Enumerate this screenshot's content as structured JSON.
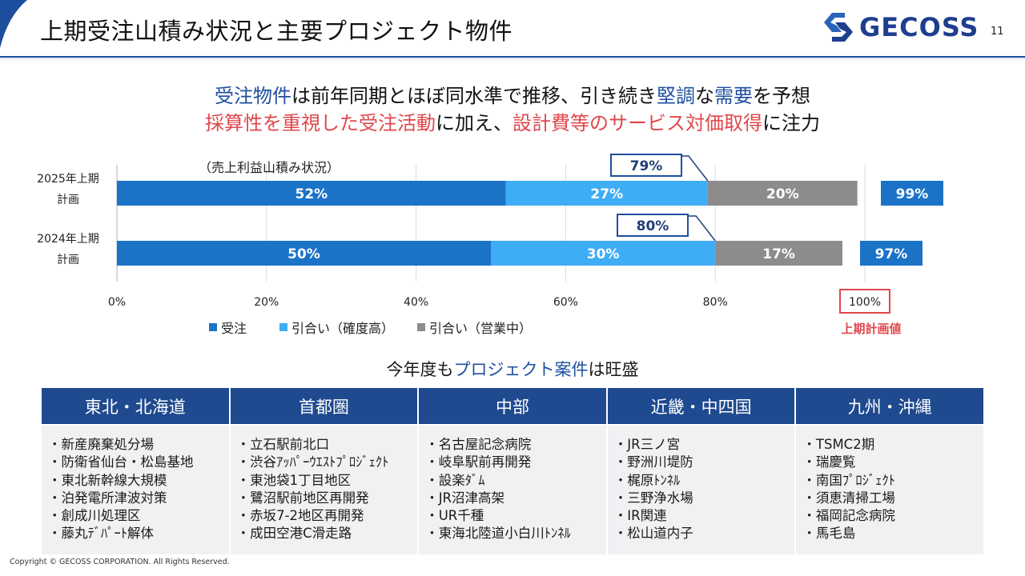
{
  "header": {
    "title": "上期受注山積み状況と主要プロジェクト物件",
    "logo_text": "GECOSS",
    "page_number": "11"
  },
  "headline": {
    "line1": [
      {
        "text": "受注物件",
        "style": "blue"
      },
      {
        "text": "は前年同期とほぼ同水準で推移、引き続き",
        "style": "black"
      },
      {
        "text": "堅調",
        "style": "blue"
      },
      {
        "text": "な",
        "style": "black"
      },
      {
        "text": "需要",
        "style": "blue"
      },
      {
        "text": "を予想",
        "style": "black"
      }
    ],
    "line2": [
      {
        "text": "採算性を重視した受注活動",
        "style": "red"
      },
      {
        "text": "に加え、",
        "style": "black"
      },
      {
        "text": "設計費等のサービス対価取得",
        "style": "red"
      },
      {
        "text": "に注力",
        "style": "black"
      }
    ]
  },
  "chart_data": {
    "type": "bar",
    "orientation": "horizontal",
    "stacked": true,
    "subtitle": "（売上利益山積み状況）",
    "categories": [
      "2025年上期\n計画",
      "2024年上期\n計画"
    ],
    "series": [
      {
        "name": "受注",
        "values": [
          52,
          50
        ],
        "labels": [
          "52%",
          "50%"
        ],
        "color": "#1b73c8"
      },
      {
        "name": "引合い（確度高）",
        "values": [
          27,
          30
        ],
        "labels": [
          "27%",
          "30%"
        ],
        "color": "#3fadf5"
      },
      {
        "name": "引合い（営業中）",
        "values": [
          20,
          17
        ],
        "labels": [
          "20%",
          "17%"
        ],
        "color": "#8c8c8c"
      }
    ],
    "callouts": [
      "79%",
      "80%"
    ],
    "totals": [
      "99%",
      "97%"
    ],
    "xlim": [
      0,
      100
    ],
    "xticks": [
      "0%",
      "20%",
      "40%",
      "60%",
      "80%",
      "100%"
    ],
    "grid": true,
    "legend_position": "bottom",
    "target_label": "上期計画値",
    "colors": {
      "order": "#1b73c8",
      "high": "#3fadf5",
      "sales": "#8c8c8c",
      "callout_border": "#1f4f9f",
      "total_box": "#1b73c8",
      "target": "#e0474c"
    }
  },
  "projects": {
    "title_parts": [
      {
        "text": "今年度も",
        "style": "black"
      },
      {
        "text": "プロジェクト案件",
        "style": "blue"
      },
      {
        "text": "は旺盛",
        "style": "black"
      }
    ],
    "regions": [
      {
        "name": "東北・北海道",
        "items": [
          "・新産廃棄処分場",
          "・防衛省仙台・松島基地",
          "・東北新幹線大規模",
          "・泊発電所津波対策",
          "・創成川処理区",
          "・藤丸ﾃﾞﾊﾟｰﾄ解体"
        ]
      },
      {
        "name": "首都圏",
        "items": [
          "・立石駅前北口",
          "・渋谷ｱｯﾊﾟｰｳｴｽﾄﾌﾟﾛｼﾞｪｸﾄ",
          "・東池袋1丁目地区",
          "・鷺沼駅前地区再開発",
          "・赤坂7-2地区再開発",
          "・成田空港C滑走路"
        ]
      },
      {
        "name": "中部",
        "items": [
          "・名古屋記念病院",
          "・岐阜駅前再開発",
          "・設楽ﾀﾞﾑ",
          "・JR沼津高架",
          "・UR千種",
          "・東海北陸道小白川ﾄﾝﾈﾙ"
        ]
      },
      {
        "name": "近畿・中四国",
        "items": [
          "・JR三ノ宮",
          "・野洲川堤防",
          "・梶原ﾄﾝﾈﾙ",
          "・三野浄水場",
          "・IR関連",
          "・松山道内子"
        ]
      },
      {
        "name": "九州・沖縄",
        "items": [
          "・TSMC2期",
          "・瑞慶覧",
          "・南国ﾌﾟﾛｼﾞｪｸﾄ",
          "・須恵清掃工場",
          "・福岡記念病院",
          "・馬毛島"
        ]
      }
    ]
  },
  "footer": {
    "copyright": "Copyright © GECOSS CORPORATION. All Rights Reserved."
  }
}
